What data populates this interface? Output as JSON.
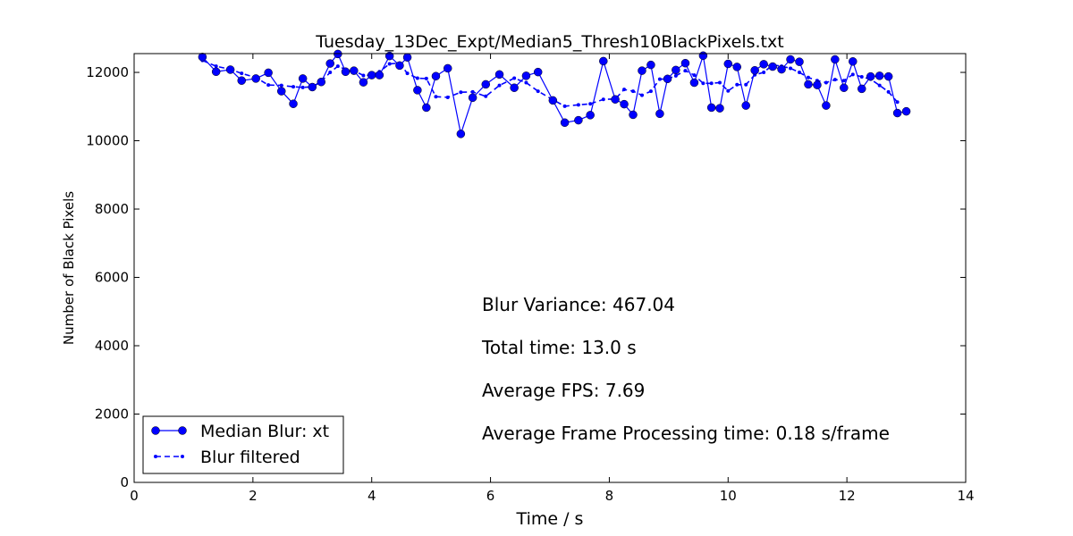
{
  "chart_data": {
    "type": "line",
    "title": "Tuesday_13Dec_Expt/Median5_Thresh10BlackPixels.txt",
    "xlabel": "Time / s",
    "ylabel": "Number of Black Pixels",
    "xlim": [
      0,
      14
    ],
    "ylim": [
      0,
      12550
    ],
    "xticks": [
      0,
      2,
      4,
      6,
      8,
      10,
      12,
      14
    ],
    "yticks": [
      0,
      2000,
      4000,
      6000,
      8000,
      10000,
      12000
    ],
    "grid": false,
    "legend_position": "bottom-left",
    "series": [
      {
        "name": "Median Blur: xt",
        "style": "solid-circle-markers",
        "color": "#0000ff",
        "x": [
          1.15,
          1.38,
          1.62,
          1.81,
          2.05,
          2.26,
          2.48,
          2.68,
          2.84,
          3.0,
          3.15,
          3.3,
          3.43,
          3.56,
          3.7,
          3.86,
          4.0,
          4.13,
          4.3,
          4.47,
          4.6,
          4.77,
          4.92,
          5.08,
          5.28,
          5.5,
          5.7,
          5.92,
          6.15,
          6.4,
          6.6,
          6.8,
          7.05,
          7.25,
          7.48,
          7.68,
          7.9,
          8.1,
          8.25,
          8.4,
          8.55,
          8.7,
          8.85,
          8.98,
          9.12,
          9.28,
          9.43,
          9.58,
          9.72,
          9.86,
          10.0,
          10.15,
          10.3,
          10.45,
          10.6,
          10.75,
          10.9,
          11.05,
          11.2,
          11.35,
          11.5,
          11.65,
          11.8,
          11.95,
          12.1,
          12.25,
          12.4,
          12.55,
          12.7,
          12.85,
          13.0
        ],
        "y": [
          12450,
          12020,
          12080,
          11760,
          11820,
          11990,
          11450,
          11080,
          11820,
          11570,
          11720,
          12260,
          12540,
          12020,
          12050,
          11710,
          11920,
          11920,
          12480,
          12200,
          12440,
          11480,
          10970,
          11890,
          12120,
          10200,
          11260,
          11650,
          11940,
          11550,
          11900,
          12010,
          11180,
          10530,
          10600,
          10750,
          12330,
          11210,
          11070,
          10760,
          12050,
          12220,
          10790,
          11810,
          12070,
          12270,
          11700,
          12490,
          10970,
          10950,
          12250,
          12160,
          11030,
          12060,
          12240,
          12170,
          12090,
          12380,
          12310,
          11650,
          11630,
          11030,
          12380,
          11550,
          12320,
          11520,
          11880,
          11900,
          11880,
          10810,
          10860
        ]
      },
      {
        "name": "Blur filtered",
        "style": "dashed-small-markers",
        "color": "#0000ff",
        "x": [
          1.15,
          1.38,
          1.62,
          1.81,
          2.05,
          2.26,
          2.48,
          2.68,
          2.84,
          3.0,
          3.15,
          3.3,
          3.43,
          3.56,
          3.7,
          3.86,
          4.0,
          4.13,
          4.3,
          4.47,
          4.6,
          4.77,
          4.92,
          5.08,
          5.28,
          5.5,
          5.7,
          5.92,
          6.15,
          6.4,
          6.6,
          6.8,
          7.05,
          7.25,
          7.48,
          7.68,
          7.9,
          8.1,
          8.25,
          8.4,
          8.55,
          8.7,
          8.85,
          8.98,
          9.12,
          9.28,
          9.43,
          9.58,
          9.72,
          9.86,
          10.0,
          10.15,
          10.3,
          10.45,
          10.6,
          10.75,
          10.9,
          11.05,
          11.2,
          11.35,
          11.5,
          11.65,
          11.8,
          11.95,
          12.1,
          12.25,
          12.4,
          12.55,
          12.7,
          12.85
        ],
        "y": [
          12350,
          12180,
          12090,
          11970,
          11850,
          11630,
          11620,
          11580,
          11560,
          11580,
          11730,
          12000,
          12180,
          12090,
          12050,
          11910,
          11920,
          12020,
          12250,
          12270,
          11970,
          11830,
          11820,
          11290,
          11270,
          11420,
          11430,
          11300,
          11620,
          11830,
          11700,
          11450,
          11200,
          11010,
          11050,
          11080,
          11210,
          11220,
          11500,
          11450,
          11330,
          11450,
          11800,
          11810,
          11900,
          12050,
          11920,
          11680,
          11680,
          11700,
          11460,
          11640,
          11640,
          11930,
          12000,
          12220,
          12180,
          12120,
          12000,
          11850,
          11760,
          11700,
          11790,
          11760,
          11940,
          11870,
          11800,
          11620,
          11430,
          11130
        ]
      }
    ],
    "annotations": [
      "Blur Variance: 467.04",
      "Total time: 13.0 s",
      "Average FPS: 7.69",
      "Average Frame Processing time: 0.18 s/frame"
    ]
  }
}
